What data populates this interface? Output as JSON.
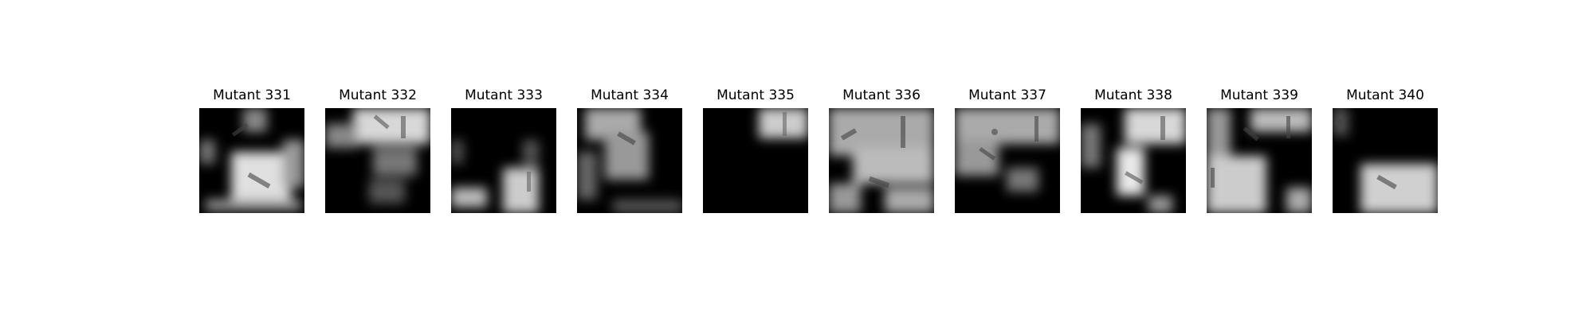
{
  "panels": [
    {
      "title": "Mutant 331"
    },
    {
      "title": "Mutant 332"
    },
    {
      "title": "Mutant 333"
    },
    {
      "title": "Mutant 334"
    },
    {
      "title": "Mutant 335"
    },
    {
      "title": "Mutant 336"
    },
    {
      "title": "Mutant 337"
    },
    {
      "title": "Mutant 338"
    },
    {
      "title": "Mutant 339"
    },
    {
      "title": "Mutant 340"
    }
  ]
}
